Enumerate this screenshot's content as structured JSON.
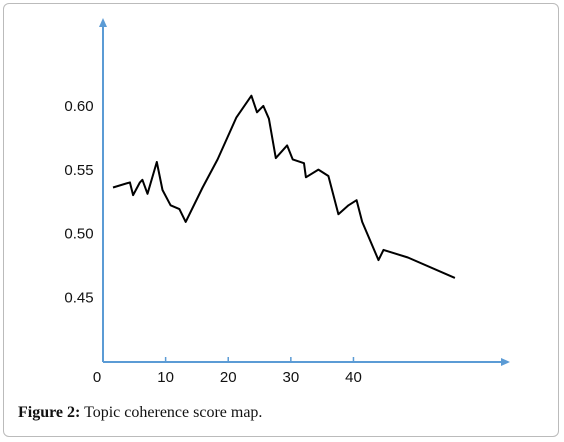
{
  "chart_data": {
    "type": "line",
    "x": [
      1.6,
      4.3,
      4.8,
      5.9,
      6.3,
      7.1,
      8.6,
      9.5,
      10.8,
      12.2,
      13.2,
      15.9,
      18.3,
      21.3,
      23.7,
      24.6,
      25.6,
      26.5,
      27.6,
      29.4,
      30.3,
      32.1,
      32.4,
      34.4,
      36.0,
      37.6,
      39.2,
      40.5,
      41.4,
      44.0,
      44.8,
      48.7,
      56.2
    ],
    "values": [
      0.537,
      0.541,
      0.531,
      0.541,
      0.543,
      0.532,
      0.557,
      0.535,
      0.523,
      0.52,
      0.51,
      0.537,
      0.559,
      0.592,
      0.609,
      0.596,
      0.601,
      0.591,
      0.56,
      0.57,
      0.559,
      0.556,
      0.545,
      0.551,
      0.546,
      0.516,
      0.523,
      0.527,
      0.51,
      0.48,
      0.488,
      0.482,
      0.466
    ],
    "color": "#000000",
    "xlim": [
      0,
      65
    ],
    "xticks": [
      0,
      10,
      20,
      30,
      40
    ],
    "ylim": [
      0.4,
      0.67
    ],
    "yticks": [
      {
        "value": 0.45,
        "label": "0.45"
      },
      {
        "value": 0.5,
        "label": "0.50"
      },
      {
        "value": 0.55,
        "label": "0.55"
      },
      {
        "value": 0.6,
        "label": "0.60"
      }
    ],
    "axis_color": "#5b9bd5"
  },
  "caption": {
    "label": "Figure 2:",
    "text": "Topic coherence score map."
  }
}
